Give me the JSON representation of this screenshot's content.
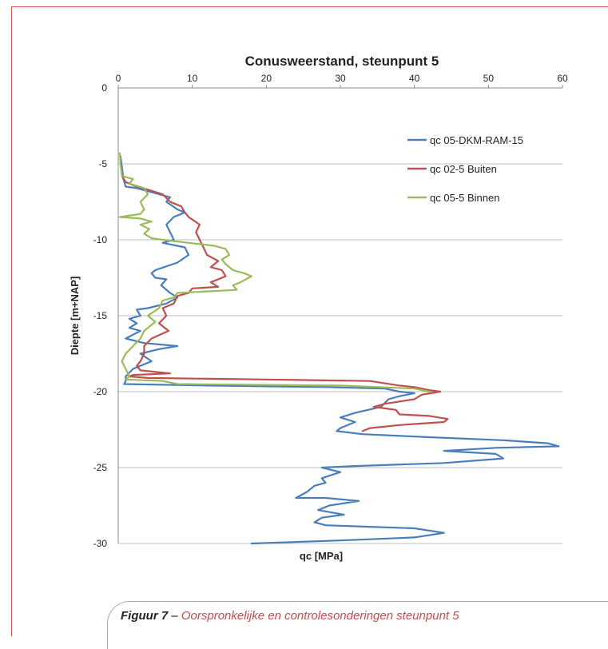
{
  "chart_data": {
    "type": "line",
    "title": "Conusweerstand, steunpunt 5",
    "xlabel": "qc [MPa]",
    "ylabel": "Diepte [m+NAP]",
    "xlim": [
      0,
      60
    ],
    "ylim": [
      -30,
      0
    ],
    "x_ticks": [
      "0",
      "10",
      "20",
      "30",
      "40",
      "50",
      "60"
    ],
    "y_ticks": [
      "0",
      "-5",
      "-10",
      "-15",
      "-20",
      "-25",
      "-30"
    ],
    "grid": "horizontal",
    "legend_position": "top-right",
    "series": [
      {
        "name": "qc 05-DKM-RAM-15",
        "color": "#4a7ebb",
        "points": [
          [
            0.3,
            -4.5
          ],
          [
            0.5,
            -5.2
          ],
          [
            0.7,
            -6.0
          ],
          [
            1.0,
            -6.5
          ],
          [
            2.5,
            -6.6
          ],
          [
            4.0,
            -6.8
          ],
          [
            5.5,
            -7.0
          ],
          [
            7.0,
            -7.2
          ],
          [
            6.5,
            -7.5
          ],
          [
            8.0,
            -8.0
          ],
          [
            9.0,
            -8.2
          ],
          [
            7.5,
            -8.5
          ],
          [
            6.5,
            -9.0
          ],
          [
            7.0,
            -9.5
          ],
          [
            7.5,
            -10.0
          ],
          [
            6.0,
            -10.2
          ],
          [
            9.0,
            -10.5
          ],
          [
            9.5,
            -11.0
          ],
          [
            8.0,
            -11.5
          ],
          [
            5.0,
            -12.0
          ],
          [
            4.5,
            -12.2
          ],
          [
            5.0,
            -12.5
          ],
          [
            6.5,
            -12.6
          ],
          [
            5.8,
            -13.0
          ],
          [
            7.0,
            -13.5
          ],
          [
            8.0,
            -13.8
          ],
          [
            6.5,
            -14.2
          ],
          [
            4.0,
            -14.5
          ],
          [
            2.5,
            -14.6
          ],
          [
            3.0,
            -15.0
          ],
          [
            1.5,
            -15.2
          ],
          [
            2.5,
            -15.5
          ],
          [
            1.5,
            -15.8
          ],
          [
            3.0,
            -16.0
          ],
          [
            1.0,
            -16.5
          ],
          [
            3.5,
            -16.8
          ],
          [
            8.0,
            -17.0
          ],
          [
            5.5,
            -17.2
          ],
          [
            3.0,
            -17.5
          ],
          [
            4.5,
            -18.0
          ],
          [
            2.0,
            -18.5
          ],
          [
            1.0,
            -19.0
          ],
          [
            1.0,
            -19.3
          ],
          [
            0.8,
            -19.5
          ],
          [
            12.0,
            -19.6
          ],
          [
            28.0,
            -19.7
          ],
          [
            36.0,
            -19.8
          ],
          [
            38.0,
            -20.0
          ],
          [
            40.0,
            -20.1
          ],
          [
            38.0,
            -20.3
          ],
          [
            36.5,
            -20.5
          ],
          [
            35.5,
            -21.0
          ],
          [
            32.0,
            -21.4
          ],
          [
            30.0,
            -21.7
          ],
          [
            32.0,
            -22.0
          ],
          [
            30.0,
            -22.4
          ],
          [
            29.5,
            -22.6
          ],
          [
            33.0,
            -22.8
          ],
          [
            42.0,
            -23.0
          ],
          [
            52.0,
            -23.2
          ],
          [
            58.0,
            -23.4
          ],
          [
            59.5,
            -23.6
          ],
          [
            51.0,
            -23.7
          ],
          [
            44.0,
            -23.9
          ],
          [
            51.0,
            -24.1
          ],
          [
            52.0,
            -24.4
          ],
          [
            44.0,
            -24.7
          ],
          [
            32.0,
            -24.9
          ],
          [
            27.5,
            -25.0
          ],
          [
            30.0,
            -25.3
          ],
          [
            27.5,
            -25.7
          ],
          [
            28.0,
            -26.0
          ],
          [
            26.5,
            -26.2
          ],
          [
            25.5,
            -26.6
          ],
          [
            24.0,
            -27.0
          ],
          [
            28.0,
            -27.0
          ],
          [
            32.5,
            -27.2
          ],
          [
            28.5,
            -27.5
          ],
          [
            27.0,
            -27.8
          ],
          [
            30.5,
            -28.1
          ],
          [
            27.5,
            -28.3
          ],
          [
            26.5,
            -28.6
          ],
          [
            28.0,
            -28.8
          ],
          [
            34.0,
            -28.9
          ],
          [
            40.0,
            -29.0
          ],
          [
            44.0,
            -29.3
          ],
          [
            40.0,
            -29.6
          ],
          [
            30.0,
            -29.8
          ],
          [
            18.0,
            -30.0
          ]
        ]
      },
      {
        "name": "qc 02-5 Buiten",
        "color": "#c0504d",
        "points": [
          [
            0.5,
            -5.8
          ],
          [
            1.0,
            -6.2
          ],
          [
            2.5,
            -6.5
          ],
          [
            4.0,
            -6.7
          ],
          [
            6.0,
            -7.0
          ],
          [
            7.0,
            -7.5
          ],
          [
            8.5,
            -7.8
          ],
          [
            9.0,
            -8.2
          ],
          [
            9.5,
            -8.5
          ],
          [
            11.0,
            -9.0
          ],
          [
            10.5,
            -9.5
          ],
          [
            11.0,
            -10.0
          ],
          [
            11.5,
            -10.5
          ],
          [
            12.0,
            -11.0
          ],
          [
            13.5,
            -11.4
          ],
          [
            12.5,
            -11.8
          ],
          [
            14.0,
            -12.0
          ],
          [
            14.5,
            -12.4
          ],
          [
            12.5,
            -12.8
          ],
          [
            13.5,
            -13.1
          ],
          [
            10.0,
            -13.2
          ],
          [
            9.5,
            -13.5
          ],
          [
            8.0,
            -13.7
          ],
          [
            7.5,
            -14.2
          ],
          [
            6.0,
            -14.5
          ],
          [
            6.5,
            -15.0
          ],
          [
            5.5,
            -15.5
          ],
          [
            6.8,
            -16.0
          ],
          [
            4.5,
            -16.5
          ],
          [
            3.5,
            -17.0
          ],
          [
            3.5,
            -17.5
          ],
          [
            3.0,
            -18.0
          ],
          [
            2.5,
            -18.3
          ],
          [
            3.0,
            -18.6
          ],
          [
            7.0,
            -18.8
          ],
          [
            2.0,
            -18.9
          ],
          [
            1.5,
            -19.0
          ],
          [
            4.0,
            -19.1
          ],
          [
            20.0,
            -19.2
          ],
          [
            34.0,
            -19.3
          ],
          [
            38.0,
            -19.6
          ],
          [
            40.0,
            -19.7
          ],
          [
            42.0,
            -19.9
          ],
          [
            43.5,
            -20.0
          ],
          [
            41.0,
            -20.2
          ],
          [
            40.0,
            -20.5
          ],
          [
            36.0,
            -20.8
          ],
          [
            34.5,
            -21.0
          ],
          [
            37.5,
            -21.2
          ],
          [
            38.0,
            -21.5
          ],
          [
            42.0,
            -21.6
          ],
          [
            44.5,
            -21.8
          ],
          [
            44.0,
            -22.0
          ],
          [
            38.0,
            -22.2
          ],
          [
            34.0,
            -22.4
          ],
          [
            33.0,
            -22.6
          ]
        ]
      },
      {
        "name": "qc 05-5 Binnen",
        "color": "#9bbb59",
        "points": [
          [
            0.2,
            -4.3
          ],
          [
            0.3,
            -5.0
          ],
          [
            0.5,
            -5.8
          ],
          [
            2.0,
            -6.0
          ],
          [
            1.5,
            -6.3
          ],
          [
            3.5,
            -6.6
          ],
          [
            4.0,
            -7.0
          ],
          [
            3.0,
            -7.5
          ],
          [
            3.5,
            -8.0
          ],
          [
            3.0,
            -8.3
          ],
          [
            0.2,
            -8.5
          ],
          [
            3.0,
            -8.6
          ],
          [
            4.5,
            -8.8
          ],
          [
            3.0,
            -9.0
          ],
          [
            4.2,
            -9.3
          ],
          [
            3.5,
            -9.6
          ],
          [
            4.5,
            -9.9
          ],
          [
            6.0,
            -10.0
          ],
          [
            9.5,
            -10.2
          ],
          [
            13.0,
            -10.4
          ],
          [
            14.5,
            -10.6
          ],
          [
            15.0,
            -11.0
          ],
          [
            14.0,
            -11.3
          ],
          [
            14.5,
            -11.6
          ],
          [
            15.5,
            -12.0
          ],
          [
            17.0,
            -12.2
          ],
          [
            18.0,
            -12.4
          ],
          [
            16.5,
            -12.8
          ],
          [
            15.5,
            -13.0
          ],
          [
            16.0,
            -13.3
          ],
          [
            8.0,
            -13.5
          ],
          [
            7.5,
            -13.8
          ],
          [
            6.0,
            -14.0
          ],
          [
            5.5,
            -14.5
          ],
          [
            4.0,
            -15.0
          ],
          [
            5.0,
            -15.4
          ],
          [
            4.0,
            -15.8
          ],
          [
            3.5,
            -16.0
          ],
          [
            3.0,
            -16.5
          ],
          [
            2.0,
            -17.0
          ],
          [
            1.0,
            -17.5
          ],
          [
            0.5,
            -18.0
          ],
          [
            1.0,
            -18.5
          ],
          [
            1.5,
            -19.0
          ],
          [
            1.0,
            -19.2
          ],
          [
            6.0,
            -19.3
          ],
          [
            8.0,
            -19.5
          ],
          [
            30.0,
            -19.6
          ],
          [
            40.0,
            -19.8
          ],
          [
            42.0,
            -20.0
          ]
        ]
      }
    ]
  },
  "caption": {
    "label": "Figuur 7",
    "separator": " – ",
    "text": "Oorspronkelijke en controlesonderingen steunpunt 5"
  }
}
